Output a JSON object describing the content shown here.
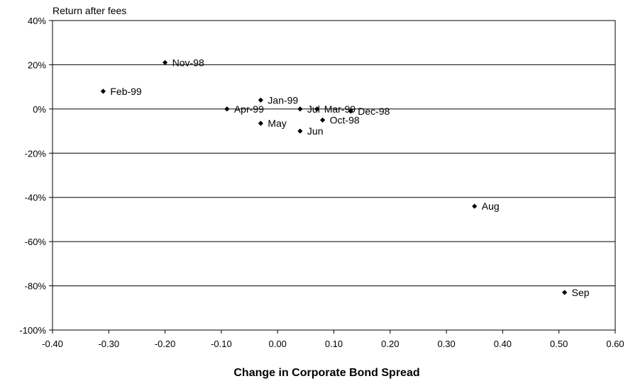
{
  "chart_data": {
    "type": "scatter",
    "xlabel": "Change in Corporate Bond Spread",
    "ylabel": "Return after fees",
    "xlim": [
      -0.4,
      0.6
    ],
    "ylim": [
      -100,
      40
    ],
    "x_ticks": [
      -0.4,
      -0.3,
      -0.2,
      -0.1,
      0.0,
      0.1,
      0.2,
      0.3,
      0.4,
      0.5,
      0.6
    ],
    "x_tick_labels": [
      "-0.40",
      "-0.30",
      "-0.20",
      "-0.10",
      "0.00",
      "0.10",
      "0.20",
      "0.30",
      "0.40",
      "0.50",
      "0.60"
    ],
    "y_ticks": [
      40,
      20,
      0,
      -20,
      -40,
      -60,
      -80,
      -100
    ],
    "y_tick_labels": [
      "40%",
      "20%",
      "0%",
      "-20%",
      "-40%",
      "-60%",
      "-80%",
      "-100%"
    ],
    "grid": "horizontal",
    "marker_color": "#000000",
    "points": [
      {
        "label": "Nov-98",
        "x": -0.2,
        "y": 21
      },
      {
        "label": "Feb-99",
        "x": -0.31,
        "y": 8
      },
      {
        "label": "Jan-99",
        "x": -0.03,
        "y": 4
      },
      {
        "label": "Apr-99",
        "x": -0.09,
        "y": 0
      },
      {
        "label": "Jul",
        "x": 0.04,
        "y": 0
      },
      {
        "label": "Mar-99",
        "x": 0.07,
        "y": 0
      },
      {
        "label": "Dec-98",
        "x": 0.13,
        "y": -1
      },
      {
        "label": "Oct-98",
        "x": 0.08,
        "y": -5
      },
      {
        "label": "May",
        "x": -0.03,
        "y": -6.5
      },
      {
        "label": "Jun",
        "x": 0.04,
        "y": -10
      },
      {
        "label": "Aug",
        "x": 0.35,
        "y": -44
      },
      {
        "label": "Sep",
        "x": 0.51,
        "y": -83
      }
    ]
  }
}
